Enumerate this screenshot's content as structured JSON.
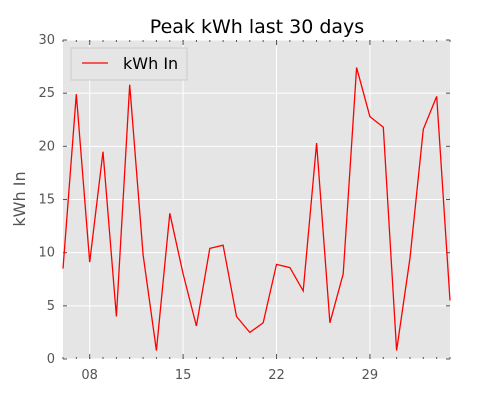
{
  "chart_data": {
    "type": "line",
    "title": "Peak kWh last 30 days",
    "xlabel": "",
    "ylabel": "kWh In",
    "ylim": [
      0,
      30
    ],
    "xlim": [
      "2015-05-06",
      "2015-06-04"
    ],
    "y_ticks": [
      0,
      5,
      10,
      15,
      20,
      25,
      30
    ],
    "x_ticks": [
      {
        "date": "2015-05-08",
        "label": "08"
      },
      {
        "date": "2015-05-15",
        "label": "15"
      },
      {
        "date": "2015-05-22",
        "label": "22"
      },
      {
        "date": "2015-05-29",
        "label": "29"
      }
    ],
    "grid": true,
    "legend_position": "top-left",
    "background_color": "#e5e5e5",
    "series": [
      {
        "name": "kWh In",
        "color": "#ff0000",
        "x": [
          "2015-05-06",
          "2015-05-07",
          "2015-05-08",
          "2015-05-09",
          "2015-05-10",
          "2015-05-11",
          "2015-05-12",
          "2015-05-13",
          "2015-05-14",
          "2015-05-15",
          "2015-05-16",
          "2015-05-17",
          "2015-05-18",
          "2015-05-19",
          "2015-05-20",
          "2015-05-21",
          "2015-05-22",
          "2015-05-23",
          "2015-05-24",
          "2015-05-25",
          "2015-05-26",
          "2015-05-27",
          "2015-05-28",
          "2015-05-29",
          "2015-05-30",
          "2015-05-31",
          "2015-06-01",
          "2015-06-02",
          "2015-06-03",
          "2015-06-04"
        ],
        "values": [
          8.5,
          24.9,
          9.1,
          19.5,
          4.0,
          25.8,
          9.8,
          0.8,
          13.7,
          8.0,
          3.1,
          10.4,
          10.7,
          4.0,
          2.5,
          3.4,
          8.9,
          8.6,
          6.4,
          20.3,
          3.4,
          8.0,
          27.4,
          22.8,
          21.8,
          0.8,
          9.5,
          21.6,
          24.7,
          5.5
        ]
      }
    ]
  }
}
